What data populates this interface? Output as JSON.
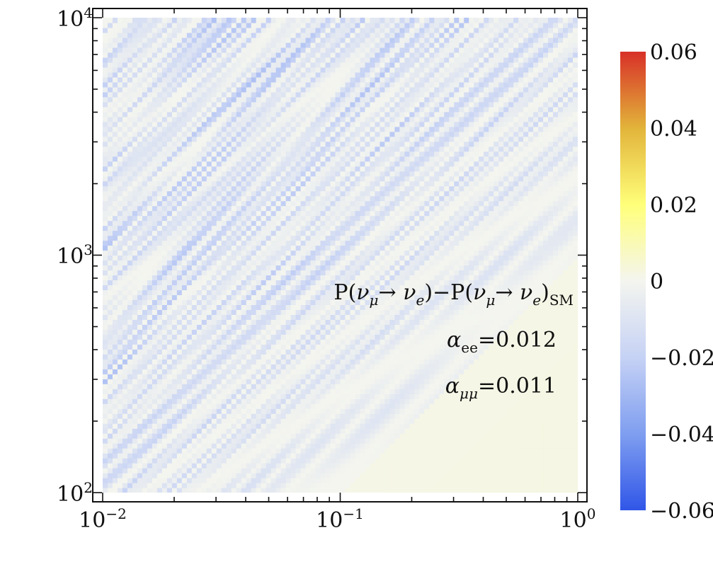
{
  "chart_data": {
    "type": "heatmap",
    "title": "",
    "xlabel": "",
    "ylabel": "",
    "x_scale": "log",
    "y_scale": "log",
    "xlim": [
      0.01,
      1
    ],
    "ylim": [
      100,
      10000
    ],
    "x_ticks": [
      {
        "value": 0.01,
        "base": "10",
        "exp": "−2"
      },
      {
        "value": 0.1,
        "base": "10",
        "exp": "−1"
      },
      {
        "value": 1,
        "base": "10",
        "exp": "0"
      }
    ],
    "y_ticks": [
      {
        "value": 100,
        "base": "10",
        "exp": "2"
      },
      {
        "value": 1000,
        "base": "10",
        "exp": "3"
      },
      {
        "value": 10000,
        "base": "10",
        "exp": "4"
      }
    ],
    "grid": false,
    "colorbar": {
      "range": [
        -0.06,
        0.06
      ],
      "ticks": [
        {
          "value": 0.06,
          "label": "0.06"
        },
        {
          "value": 0.04,
          "label": "0.04"
        },
        {
          "value": 0.02,
          "label": "0.02"
        },
        {
          "value": 0,
          "label": "0"
        },
        {
          "value": -0.02,
          "label": "−0.02"
        },
        {
          "value": -0.04,
          "label": "−0.04"
        },
        {
          "value": -0.06,
          "label": "−0.06"
        }
      ],
      "colors": [
        "#3056e8",
        "#7f9ef0",
        "#c6d2f5",
        "#f4f5ef",
        "#ffff7a",
        "#e2b43a",
        "#d83028"
      ]
    },
    "annotations": [
      {
        "id": "quantity",
        "text": "P(ν_μ→ ν_e)−P(ν_μ→ ν_e)_SM"
      },
      {
        "id": "alpha_ee",
        "symbol": "α",
        "sub": "ee",
        "text": "=0.012"
      },
      {
        "id": "alpha_mumu",
        "symbol": "α",
        "sub": "μμ",
        "text": "=0.011"
      }
    ],
    "values_summary": "Oscillating differences mostly between about −0.03 and 0.005; negative oscillation bands strongest toward small x and large y, near 0 toward large x."
  }
}
